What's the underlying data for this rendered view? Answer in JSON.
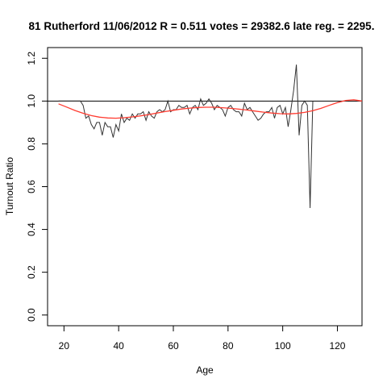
{
  "chart_data": {
    "type": "line",
    "title": "81 Rutherford 11/06/2012 R = 0.511 votes = 29382.6 late reg. = 2295.",
    "xlabel": "Age",
    "ylabel": "Turnout Ratio",
    "xlim": [
      14,
      129
    ],
    "ylim": [
      -0.05,
      1.25
    ],
    "x_ticks": [
      20,
      40,
      60,
      80,
      100,
      120
    ],
    "x_tick_labels": [
      "20",
      "40",
      "60",
      "80",
      "100",
      "120"
    ],
    "y_ticks": [
      0.0,
      0.2,
      0.4,
      0.6,
      0.8,
      1.0,
      1.2
    ],
    "y_tick_labels": [
      "0.0",
      "0.2",
      "0.4",
      "0.6",
      "0.8",
      "1.0",
      "1.2"
    ],
    "grid": false,
    "reference_line": {
      "y": 1.0,
      "color": "#000000"
    },
    "series": [
      {
        "color": "#333333",
        "x": [
          18,
          19,
          20,
          21,
          22,
          23,
          24,
          25,
          26,
          27,
          28,
          29,
          30,
          31,
          32,
          33,
          34,
          35,
          36,
          37,
          38,
          39,
          40,
          41,
          42,
          43,
          44,
          45,
          46,
          47,
          48,
          49,
          50,
          51,
          52,
          53,
          54,
          55,
          56,
          57,
          58,
          59,
          60,
          61,
          62,
          63,
          64,
          65,
          66,
          67,
          68,
          69,
          70,
          71,
          72,
          73,
          74,
          75,
          76,
          77,
          78,
          79,
          80,
          81,
          82,
          83,
          84,
          85,
          86,
          87,
          88,
          89,
          90,
          91,
          92,
          93,
          94,
          95,
          96,
          97,
          98,
          99,
          100,
          101,
          102,
          103,
          104,
          105,
          106,
          107,
          108,
          109,
          110,
          111
        ],
        "y": [
          1.0,
          1.0,
          1.0,
          1.0,
          1.0,
          1.0,
          1.0,
          1.0,
          1.0,
          0.98,
          0.92,
          0.93,
          0.89,
          0.87,
          0.9,
          0.9,
          0.84,
          0.9,
          0.88,
          0.88,
          0.83,
          0.89,
          0.86,
          0.94,
          0.9,
          0.92,
          0.91,
          0.94,
          0.92,
          0.94,
          0.94,
          0.95,
          0.91,
          0.95,
          0.93,
          0.92,
          0.95,
          0.96,
          0.95,
          0.96,
          1.0,
          0.95,
          0.96,
          0.96,
          0.98,
          0.97,
          0.97,
          0.98,
          0.94,
          0.97,
          0.98,
          0.96,
          1.01,
          0.98,
          0.99,
          1.01,
          0.99,
          0.96,
          0.98,
          0.97,
          0.96,
          0.93,
          0.97,
          0.98,
          0.96,
          0.95,
          0.95,
          0.93,
          0.99,
          0.96,
          0.97,
          0.95,
          0.93,
          0.91,
          0.92,
          0.94,
          0.95,
          0.95,
          0.97,
          0.92,
          0.97,
          0.98,
          0.94,
          0.97,
          0.88,
          0.96,
          1.05,
          1.17,
          0.84,
          0.98,
          1.0,
          0.98,
          0.5,
          1.0
        ]
      },
      {
        "color": "#ff3b30",
        "x": [
          18,
          21,
          24,
          27,
          30,
          33,
          36,
          39,
          42,
          45,
          48,
          51,
          54,
          57,
          60,
          63,
          66,
          69,
          72,
          75,
          78,
          81,
          84,
          87,
          90,
          93,
          96,
          99,
          102,
          105,
          108,
          111,
          114,
          117,
          120,
          123,
          126,
          129
        ],
        "y": [
          0.987,
          0.972,
          0.956,
          0.943,
          0.932,
          0.925,
          0.921,
          0.92,
          0.922,
          0.926,
          0.931,
          0.937,
          0.944,
          0.951,
          0.957,
          0.963,
          0.967,
          0.97,
          0.971,
          0.971,
          0.969,
          0.966,
          0.962,
          0.958,
          0.953,
          0.948,
          0.944,
          0.941,
          0.94,
          0.942,
          0.947,
          0.955,
          0.966,
          0.98,
          0.993,
          1.003,
          1.006,
          1.0
        ]
      }
    ]
  }
}
